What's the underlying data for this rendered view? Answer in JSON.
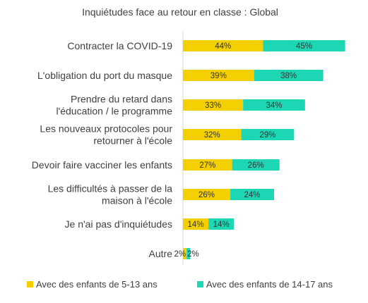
{
  "chart_data": {
    "type": "bar",
    "orientation": "horizontal",
    "stacked": true,
    "title": "Inquiétudes face au retour en classe : Global",
    "categories": [
      [
        "Contracter la COVID-19"
      ],
      [
        "L'obligation du port du masque"
      ],
      [
        "Prendre du retard dans",
        "l'éducation / le programme"
      ],
      [
        "Les nouveaux protocoles pour",
        "retourner à l'école"
      ],
      [
        "Devoir faire vacciner les enfants"
      ],
      [
        "Les difficultés à passer de la",
        "maison à l'école"
      ],
      [
        "Je n'ai pas d'inquiétudes"
      ],
      [
        "Autre"
      ]
    ],
    "series": [
      {
        "name": "Avec des enfants de 5-13 ans",
        "color": "#f5d000",
        "values": [
          44,
          39,
          33,
          32,
          27,
          26,
          14,
          2
        ]
      },
      {
        "name": "Avec des enfants de 14-17 ans",
        "color": "#1dd7b4",
        "values": [
          45,
          38,
          34,
          29,
          26,
          24,
          14,
          2
        ]
      }
    ],
    "value_suffix": "%",
    "legend_position": "bottom",
    "grid": false
  }
}
